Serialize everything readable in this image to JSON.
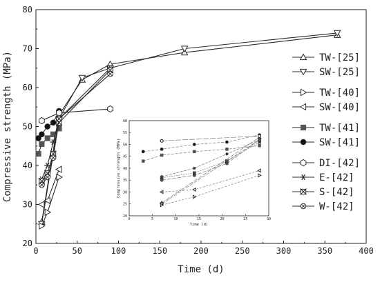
{
  "chart_data": {
    "type": "line",
    "xlabel": "Time (d)",
    "ylabel": "Compressive strength (MPa)",
    "xlim": [
      0,
      400
    ],
    "ylim": [
      20,
      80
    ],
    "xticks": [
      "0",
      "50",
      "100",
      "150",
      "200",
      "250",
      "300",
      "350",
      "400"
    ],
    "yticks": [
      "20",
      "30",
      "40",
      "50",
      "60",
      "70",
      "80"
    ],
    "grid": false,
    "legend_position": "right",
    "series": [
      {
        "name": "TW-[25]",
        "marker": "triangle-up",
        "fill": "none",
        "x": [
          7,
          28,
          56,
          90,
          180,
          365
        ],
        "y": [
          25.5,
          53,
          62,
          66,
          69,
          73.5
        ]
      },
      {
        "name": "SW-[25]",
        "marker": "triangle-down",
        "fill": "none",
        "x": [
          7,
          28,
          56,
          90,
          180,
          365
        ],
        "y": [
          25,
          52,
          62.5,
          65,
          70,
          74
        ]
      },
      {
        "name": "TW-[40]",
        "marker": "triangle-right",
        "fill": "none",
        "x": [
          7,
          14,
          28
        ],
        "y": [
          24.5,
          28,
          37
        ]
      },
      {
        "name": "SW-[40]",
        "marker": "triangle-left",
        "fill": "none",
        "x": [
          7,
          14,
          28
        ],
        "y": [
          30,
          31,
          39
        ]
      },
      {
        "name": "TW-[41]",
        "marker": "square",
        "fill": "solid",
        "x": [
          3,
          7,
          14,
          21,
          28
        ],
        "y": [
          43,
          45.5,
          47,
          48,
          49.5
        ]
      },
      {
        "name": "SW-[41]",
        "marker": "circle",
        "fill": "solid",
        "x": [
          3,
          7,
          14,
          21,
          28
        ],
        "y": [
          47,
          48,
          50,
          51,
          54
        ]
      },
      {
        "name": "DI-[42]",
        "marker": "hexagon",
        "fill": "none",
        "x": [
          7,
          28,
          90
        ],
        "y": [
          51.5,
          53.5,
          54.5
        ]
      },
      {
        "name": "E-[42]",
        "marker": "star",
        "fill": "none",
        "x": [
          7,
          14,
          21,
          28,
          90
        ],
        "y": [
          36.5,
          40,
          46,
          52,
          65
        ]
      },
      {
        "name": "S-[42]",
        "marker": "x-box",
        "fill": "none",
        "x": [
          7,
          14,
          21,
          28,
          90
        ],
        "y": [
          36,
          38,
          43,
          51,
          64.5
        ]
      },
      {
        "name": "W-[42]",
        "marker": "circle-x",
        "fill": "none",
        "x": [
          7,
          14,
          21,
          28,
          90
        ],
        "y": [
          35,
          37,
          42,
          52,
          63.5
        ]
      }
    ],
    "inset": {
      "xlabel": "Time (d)",
      "ylabel": "Compressive strength (MPa)",
      "xlim": [
        0,
        30
      ],
      "ylim": [
        20,
        60
      ],
      "xticks": [
        "0",
        "5",
        "10",
        "15",
        "20",
        "25",
        "30"
      ],
      "yticks": [
        "20",
        "25",
        "30",
        "35",
        "40",
        "45",
        "50",
        "55",
        "60"
      ]
    }
  },
  "colors": {
    "line": "#2a2a2a",
    "marker_solid": "#555555",
    "marker_fill_dark": "#111111",
    "axis": "#222222",
    "inset_line": "#777777"
  }
}
